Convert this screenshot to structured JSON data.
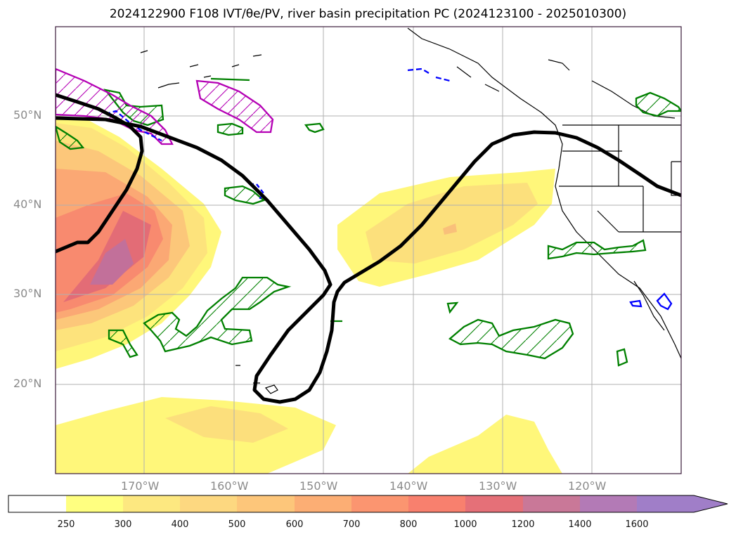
{
  "title": "2024122900 F108 IVT/θe/PV, river basin precipitation PC (2024123100 - 2025010300)",
  "lat_labels": [
    "50°N",
    "40°N",
    "30°N",
    "20°N"
  ],
  "lon_labels": [
    "170°W",
    "160°W",
    "150°W",
    "140°W",
    "130°W",
    "120°W"
  ],
  "colorbar": {
    "ticks": [
      "250",
      "300",
      "400",
      "500",
      "600",
      "700",
      "800",
      "1000",
      "1200",
      "1400",
      "1600"
    ],
    "colors": [
      "#ffff80",
      "#fde880",
      "#fdd880",
      "#fdc67a",
      "#fcae74",
      "#fb9570",
      "#f8806e",
      "#e57078",
      "#c97898",
      "#b37ab6",
      "#a07ec8"
    ]
  },
  "colors": {
    "ivt_low": "#fff77a",
    "ivt_mid": "#fcd27a",
    "ivt_high": "#f48a7e",
    "ivt_peak": "#d0759a",
    "theta_e_contour": "#000000",
    "pv_contour": "#008000",
    "blue_contour": "#0000ff",
    "magenta_contour": "#b400b4"
  }
}
